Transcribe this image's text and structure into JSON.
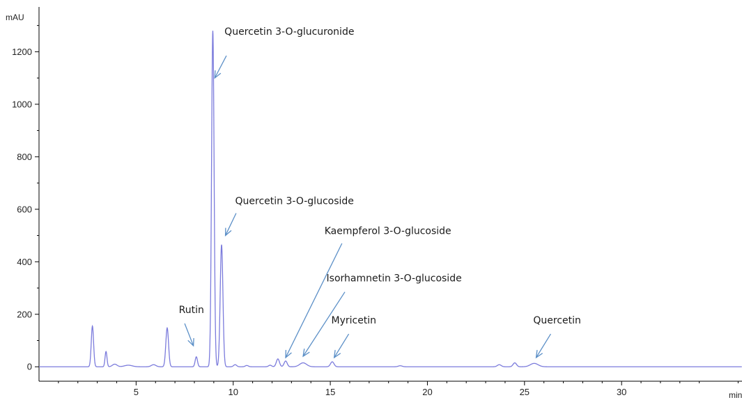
{
  "chart_data": {
    "type": "line",
    "title": "",
    "xlabel": "min",
    "ylabel": "mAU",
    "xlim": [
      0,
      36.2
    ],
    "ylim": [
      -55,
      1360
    ],
    "xticks": [
      5,
      10,
      15,
      20,
      25,
      30
    ],
    "yticks": [
      0,
      200,
      400,
      600,
      800,
      1000,
      1200
    ],
    "grid": false,
    "legend": "none",
    "colors": {
      "trace": "#7b7bdc",
      "arrow": "#5b8fc7",
      "axis": "#000000"
    },
    "series": [
      {
        "peaks": [
          {
            "rt": 2.75,
            "height": 155,
            "width": 0.06
          },
          {
            "rt": 3.45,
            "height": 58,
            "width": 0.05
          },
          {
            "rt": 3.9,
            "height": 10,
            "width": 0.12
          },
          {
            "rt": 4.6,
            "height": 6,
            "width": 0.2
          },
          {
            "rt": 5.9,
            "height": 8,
            "width": 0.12
          },
          {
            "rt": 6.6,
            "height": 148,
            "width": 0.07
          },
          {
            "rt": 8.1,
            "height": 38,
            "width": 0.06
          },
          {
            "rt": 8.95,
            "height": 1280,
            "width": 0.065
          },
          {
            "rt": 9.4,
            "height": 465,
            "width": 0.07
          },
          {
            "rt": 10.1,
            "height": 8,
            "width": 0.08
          },
          {
            "rt": 10.7,
            "height": 5,
            "width": 0.08
          },
          {
            "rt": 11.9,
            "height": 6,
            "width": 0.08
          },
          {
            "rt": 12.3,
            "height": 30,
            "width": 0.08
          },
          {
            "rt": 12.7,
            "height": 22,
            "width": 0.08
          },
          {
            "rt": 13.6,
            "height": 15,
            "width": 0.18
          },
          {
            "rt": 15.1,
            "height": 19,
            "width": 0.09
          },
          {
            "rt": 18.6,
            "height": 4,
            "width": 0.1
          },
          {
            "rt": 23.7,
            "height": 8,
            "width": 0.1
          },
          {
            "rt": 24.5,
            "height": 15,
            "width": 0.09
          },
          {
            "rt": 25.5,
            "height": 13,
            "width": 0.2
          }
        ]
      }
    ],
    "annotations": [
      {
        "label": "Quercetin 3-O-glucuronide",
        "text_x": 9.55,
        "text_y": 1265,
        "arrow_from": [
          9.65,
          1185
        ],
        "arrow_to": [
          9.05,
          1100
        ]
      },
      {
        "label": "Quercetin 3-O-glucoside",
        "text_x": 10.1,
        "text_y": 620,
        "arrow_from": [
          10.15,
          585
        ],
        "arrow_to": [
          9.6,
          500
        ]
      },
      {
        "label": "Rutin",
        "text_x": 7.2,
        "text_y": 205,
        "arrow_from": [
          7.5,
          165
        ],
        "arrow_to": [
          7.95,
          80
        ]
      },
      {
        "label": "Kaempferol 3-O-glucoside",
        "text_x": 14.7,
        "text_y": 505,
        "arrow_from": [
          15.6,
          470
        ],
        "arrow_to": [
          12.7,
          35
        ]
      },
      {
        "label": "Isorhamnetin 3-O-glucoside",
        "text_x": 14.8,
        "text_y": 325,
        "arrow_from": [
          15.75,
          285
        ],
        "arrow_to": [
          13.6,
          40
        ]
      },
      {
        "label": "Myricetin",
        "text_x": 15.05,
        "text_y": 165,
        "arrow_from": [
          15.95,
          125
        ],
        "arrow_to": [
          15.2,
          35
        ]
      },
      {
        "label": "Quercetin",
        "text_x": 25.45,
        "text_y": 165,
        "arrow_from": [
          26.35,
          125
        ],
        "arrow_to": [
          25.6,
          35
        ]
      }
    ]
  }
}
